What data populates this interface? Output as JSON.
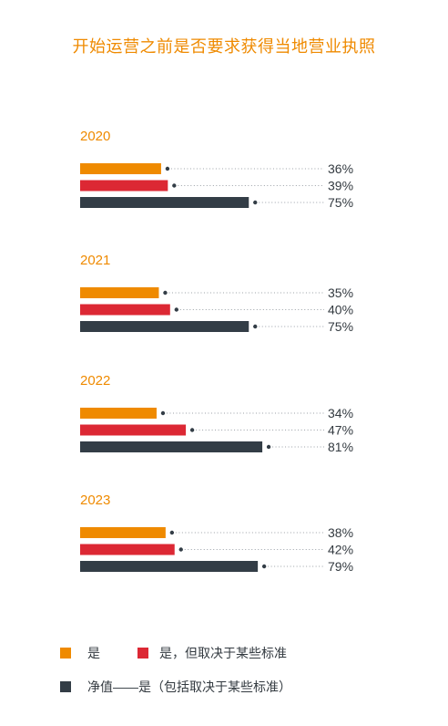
{
  "title": "开始运营之前是否要求获得当地营业执照",
  "colors": {
    "yes": "#ef8a00",
    "conditional": "#dc2834",
    "net": "#333d46",
    "year_label": "#ef8a00",
    "dots": "#9aa0a6",
    "text": "#333a40"
  },
  "legend": {
    "yes": "是",
    "conditional": "是，但取决于某些标准",
    "net": "净值——是（包括取决于某些标准）"
  },
  "chart_data": {
    "type": "bar",
    "orientation": "horizontal",
    "unit": "%",
    "groups": [
      {
        "year": "2020",
        "values": [
          36,
          39,
          75
        ],
        "labels": [
          "36%",
          "39%",
          "75%"
        ]
      },
      {
        "year": "2021",
        "values": [
          35,
          40,
          75
        ],
        "labels": [
          "35%",
          "40%",
          "75%"
        ]
      },
      {
        "year": "2022",
        "values": [
          34,
          47,
          81
        ],
        "labels": [
          "34%",
          "47%",
          "81%"
        ]
      },
      {
        "year": "2023",
        "values": [
          38,
          42,
          79
        ],
        "labels": [
          "38%",
          "42%",
          "79%"
        ]
      }
    ],
    "series": [
      {
        "name": "是",
        "color": "#ef8a00"
      },
      {
        "name": "是，但取决于某些标准",
        "color": "#dc2834"
      },
      {
        "name": "净值——是（包括取决于某些标准）",
        "color": "#333d46"
      }
    ]
  }
}
